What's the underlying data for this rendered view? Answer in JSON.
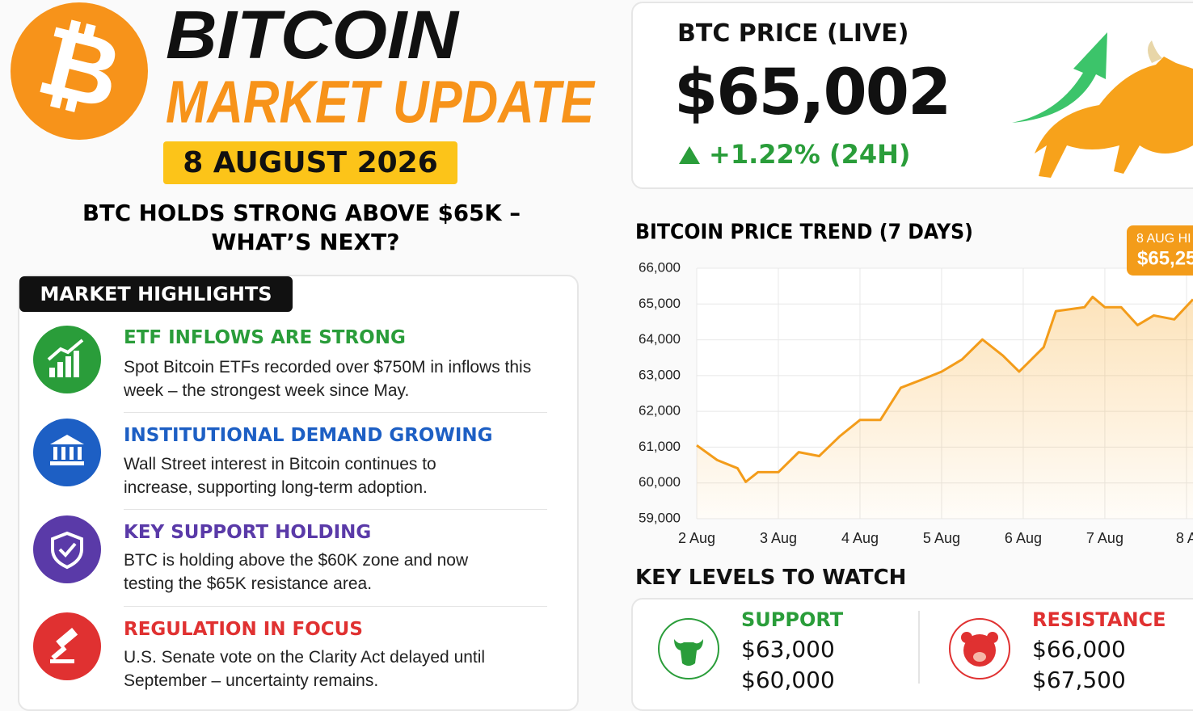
{
  "header": {
    "title": "BITCOIN",
    "subtitle": "MARKET UPDATE",
    "date": "8 AUGUST 2026",
    "headline": [
      "BTC HOLDS STRONG ABOVE $65K –",
      "WHAT’S NEXT?"
    ]
  },
  "highlights": {
    "label": "MARKET HIGHLIGHTS",
    "items": [
      {
        "title": "ETF INFLOWS ARE STRONG",
        "text": "Spot Bitcoin ETFs recorded over $750M in inflows this week – the strongest week since May."
      },
      {
        "title": "INSTITUTIONAL DEMAND GROWING",
        "text": "Wall Street interest in Bitcoin continues to increase, supporting long-term adoption."
      },
      {
        "title": "KEY SUPPORT HOLDING",
        "text": "BTC is holding above the $60K zone and now testing the $65K resistance area."
      },
      {
        "title": "REGULATION IN FOCUS",
        "text": "U.S. Senate vote on the Clarity Act delayed until September – uncertainty remains."
      }
    ]
  },
  "price": {
    "label": "BTC PRICE (LIVE)",
    "value": "$65,002",
    "change": "+1.22% (24H)"
  },
  "chart_data": {
    "type": "line",
    "title": "BITCOIN PRICE TREND (7 DAYS)",
    "color": "#f39c1a",
    "grid": true,
    "x": [
      2.0,
      2.25,
      2.5,
      2.6,
      2.75,
      3.0,
      3.25,
      3.5,
      3.75,
      4.0,
      4.25,
      4.5,
      4.75,
      5.0,
      5.25,
      5.5,
      5.75,
      5.95,
      6.25,
      6.4,
      6.75,
      6.85,
      7.0,
      7.2,
      7.4,
      7.6,
      7.85,
      8.08
    ],
    "values": [
      61050,
      60640,
      60410,
      60030,
      60300,
      60300,
      60860,
      60750,
      61300,
      61760,
      61760,
      62660,
      62880,
      63110,
      63450,
      64010,
      63560,
      63110,
      63790,
      64800,
      64910,
      65200,
      64910,
      64910,
      64410,
      64680,
      64570,
      65130
    ],
    "xlim": [
      2,
      8.08
    ],
    "ylim": [
      59000,
      66000
    ],
    "xticks": [
      {
        "value": 2,
        "label": "2 Aug"
      },
      {
        "value": 3,
        "label": "3 Aug"
      },
      {
        "value": 4,
        "label": "4 Aug"
      },
      {
        "value": 5,
        "label": "5 Aug"
      },
      {
        "value": 6,
        "label": "6 Aug"
      },
      {
        "value": 7,
        "label": "7 Aug"
      },
      {
        "value": 8,
        "label": "8 A"
      }
    ],
    "yticks": [
      {
        "value": 59000,
        "label": "59,000"
      },
      {
        "value": 60000,
        "label": "60,000"
      },
      {
        "value": 61000,
        "label": "61,000"
      },
      {
        "value": 62000,
        "label": "62,000"
      },
      {
        "value": 63000,
        "label": "63,000"
      },
      {
        "value": 64000,
        "label": "64,000"
      },
      {
        "value": 65000,
        "label": "65,000"
      },
      {
        "value": 66000,
        "label": "66,000"
      }
    ],
    "annotation": [
      "8 AUG HI",
      "$65,25"
    ]
  },
  "key_levels": {
    "title": "KEY LEVELS TO WATCH",
    "support": {
      "label": "SUPPORT",
      "levels": [
        "$63,000",
        "$60,000"
      ]
    },
    "resistance": {
      "label": "RESISTANCE",
      "levels": [
        "$66,000",
        "$67,500"
      ]
    }
  }
}
